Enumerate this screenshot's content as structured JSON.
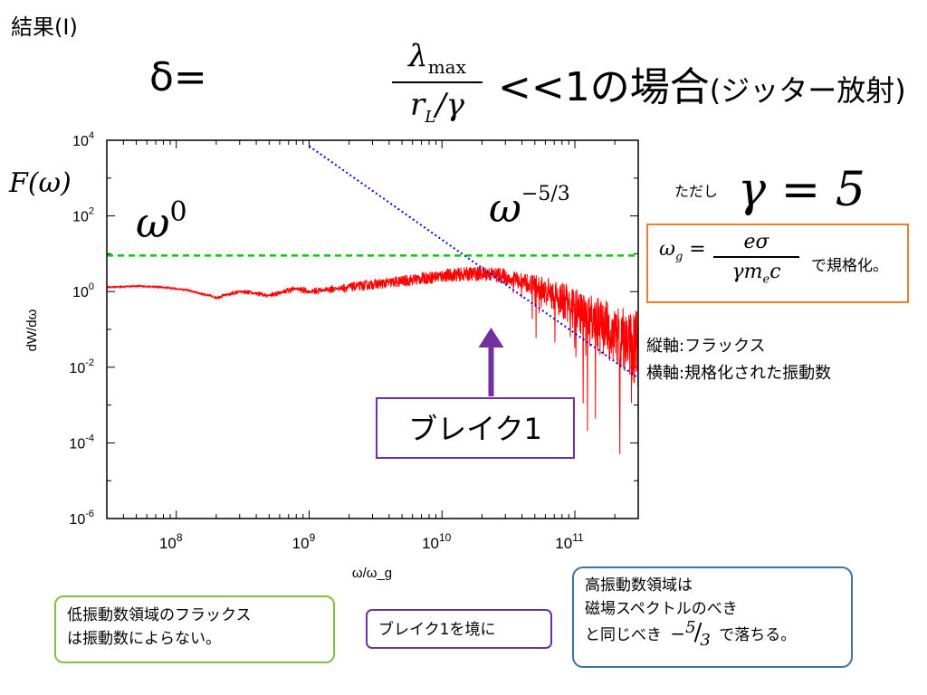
{
  "title": {
    "corner": "結果(I)"
  },
  "heading": {
    "delta_eq": "δ=",
    "frac_num": "λ",
    "frac_num_sub": "max",
    "frac_den": "r",
    "frac_den_sub": "L",
    "frac_den_tail": "/γ",
    "condition": "<<1の場合",
    "paren": "(ジッター放射)"
  },
  "gamma_note": {
    "label": "ただし",
    "equation": "γ = 5"
  },
  "normalization": {
    "lhs": "ω",
    "lhs_sub": "g",
    "equals": "=",
    "num": "eσ",
    "den": "γm",
    "den_sub": "e",
    "den_tail": "c",
    "text": "で規格化。"
  },
  "axis_notes": {
    "vertical": "縦軸:フラックス",
    "horizontal": "横軸:規格化された振動数"
  },
  "chart_labels": {
    "f_omega": "F(ω)",
    "omega0_base": "ω",
    "omega0_exp": "0",
    "omega53_base": "ω",
    "omega53_exp": "−5/3",
    "break_label": "ブレイク1"
  },
  "callouts": {
    "left_line1": "低振動数領域のフラックス",
    "left_line2": "は振動数によらない。",
    "mid": "ブレイク1を境に",
    "right_line1": "高振動数領域は",
    "right_line2": "磁場スペクトルのべき",
    "right_line3_pre": "と同じべき",
    "right_minus": "−",
    "right_num": "5",
    "right_slash": "/",
    "right_den": "3",
    "right_line3_post": "で落ちる。"
  },
  "colors": {
    "spectrum": "#ff0000",
    "flat_reference": "#00cc00",
    "power_law_reference": "#0000ee",
    "arrow": "#7030a0",
    "break_box": "#7030a0",
    "norm_box": "#ed7d31",
    "left_callout": "#7dc242",
    "right_callout": "#41719c"
  },
  "chart_data": {
    "type": "line",
    "xlabel": "ω/ω_g",
    "ylabel": "dW/dω",
    "x_scale": "log",
    "y_scale": "log",
    "xlim": [
      30000000.0,
      300000000000.0
    ],
    "ylim": [
      1e-06,
      10000.0
    ],
    "x_ticks": [
      {
        "base": "10",
        "exp": "8",
        "value": 100000000.0
      },
      {
        "base": "10",
        "exp": "9",
        "value": 1000000000.0
      },
      {
        "base": "10",
        "exp": "10",
        "value": 10000000000.0
      },
      {
        "base": "10",
        "exp": "11",
        "value": 100000000000.0
      }
    ],
    "y_ticks": [
      {
        "base": "10",
        "exp": "4",
        "value": 10000.0
      },
      {
        "base": "10",
        "exp": "2",
        "value": 100.0
      },
      {
        "base": "10",
        "exp": "0",
        "value": 1
      },
      {
        "base": "10",
        "exp": "-2",
        "value": 0.01
      },
      {
        "base": "10",
        "exp": "-4",
        "value": 0.0001
      },
      {
        "base": "10",
        "exp": "-6",
        "value": 1e-06
      }
    ],
    "series": [
      {
        "style": "noisy-line",
        "x": [
          30000000.0,
          50000000.0,
          80000000.0,
          120000000.0,
          200000000.0,
          300000000.0,
          500000000.0,
          800000000.0,
          1000000000.0,
          2000000000.0,
          4000000000.0,
          7000000000.0,
          10000000000.0,
          15000000000.0,
          22000000000.0,
          30000000000.0,
          50000000000.0,
          80000000000.0,
          120000000000.0,
          200000000000.0,
          300000000000.0
        ],
        "y": [
          1.3,
          1.4,
          1.3,
          1.1,
          0.7,
          1.0,
          0.8,
          1.2,
          1.0,
          1.3,
          1.7,
          2.2,
          2.6,
          2.9,
          3.0,
          2.5,
          1.4,
          0.6,
          0.2,
          0.07,
          0.03
        ]
      },
      {
        "style": "dashed",
        "x": [
          30000000.0,
          300000000000.0
        ],
        "y": [
          9,
          9
        ]
      },
      {
        "style": "dotted",
        "x": [
          1000000000.0,
          300000000000.0
        ],
        "y": [
          7000,
          0.0052
        ]
      }
    ],
    "annotation": {
      "text": "ブレイク1",
      "x": 22000000000.0
    },
    "grid": false
  }
}
